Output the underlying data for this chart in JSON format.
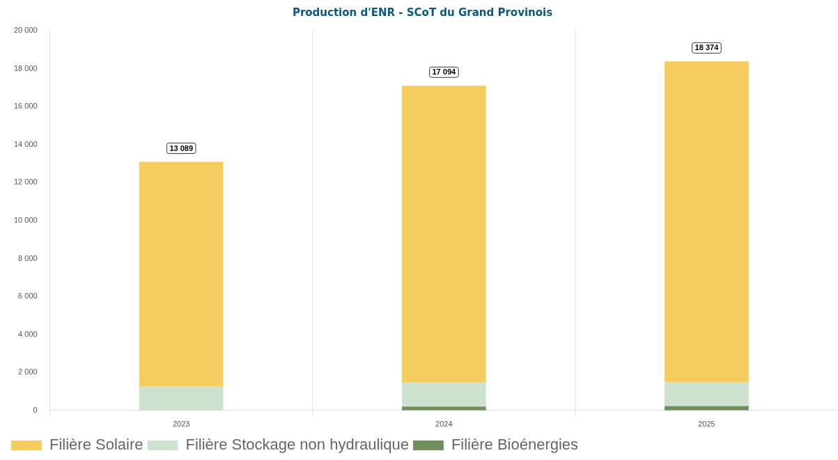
{
  "chart_data": {
    "type": "bar",
    "title": "Production d'ENR - SCoT du Grand Provinois",
    "categories": [
      "2023",
      "2024",
      "2025"
    ],
    "stacked": true,
    "series": [
      {
        "name": "Filière Bioénergies",
        "color": "#6f8f5f",
        "values": [
          null,
          200,
          230
        ]
      },
      {
        "name": "Filière Stockage non hydraulique",
        "color": "#cde2cf",
        "values": [
          1250,
          1270,
          1260
        ]
      },
      {
        "name": "Filière Solaire",
        "color": "#f5cd5f",
        "values": [
          11839,
          15624,
          16884
        ]
      }
    ],
    "ylim": [
      0,
      20000
    ],
    "yticks": [
      {
        "value": 0,
        "label": "0"
      },
      {
        "value": 2000,
        "label": "2 000"
      },
      {
        "value": 4000,
        "label": "4 000"
      },
      {
        "value": 6000,
        "label": "6 000"
      },
      {
        "value": 8000,
        "label": "8 000"
      },
      {
        "value": 10000,
        "label": "10 000"
      },
      {
        "value": 12000,
        "label": "12 000"
      },
      {
        "value": 14000,
        "label": "14 000"
      },
      {
        "value": 16000,
        "label": "16 000"
      },
      {
        "value": 18000,
        "label": "18 000"
      },
      {
        "value": 20000,
        "label": "20 000"
      }
    ],
    "totals": [
      "13 089",
      "17 094",
      "18 374"
    ],
    "grid": "x",
    "legend": "bottom left"
  }
}
